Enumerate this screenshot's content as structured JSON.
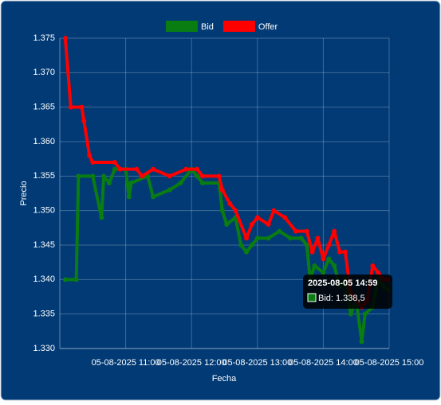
{
  "chart_data": {
    "type": "line",
    "x_label": "Fecha",
    "y_label": "Precio",
    "xlim": [
      "2025-08-05 10:00",
      "2025-08-05 15:00"
    ],
    "xticks": [
      {
        "value": "2025-08-05 11:00",
        "label": "05-08-2025 11:00"
      },
      {
        "value": "2025-08-05 12:00",
        "label": "05-08-2025 12:00"
      },
      {
        "value": "2025-08-05 13:00",
        "label": "05-08-2025 13:00"
      },
      {
        "value": "2025-08-05 14:00",
        "label": "05-08-2025 14:00"
      },
      {
        "value": "2025-08-05 15:00",
        "label": "05-08-2025 15:00"
      }
    ],
    "ylim": [
      1.33,
      1.375
    ],
    "yticks": [
      {
        "value": 1.33,
        "label": "1.330"
      },
      1.335,
      {
        "value": 1.34,
        "label": "1.340"
      },
      1.345,
      {
        "value": 1.35,
        "label": "1.350"
      },
      1.355,
      {
        "value": 1.36,
        "label": "1.360"
      },
      1.365,
      {
        "value": 1.37,
        "label": "1.370"
      },
      1.375
    ],
    "grid": true,
    "legend": "top",
    "series": [
      {
        "name": "Bid",
        "color": "#0a7d12",
        "x": [
          "2025-08-05 10:05",
          "2025-08-05 10:15",
          "2025-08-05 10:17",
          "2025-08-05 10:30",
          "2025-08-05 10:38",
          "2025-08-05 10:40",
          "2025-08-05 10:45",
          "2025-08-05 10:50",
          "2025-08-05 11:00",
          "2025-08-05 11:03",
          "2025-08-05 11:05",
          "2025-08-05 11:20",
          "2025-08-05 11:25",
          "2025-08-05 11:40",
          "2025-08-05 11:50",
          "2025-08-05 12:00",
          "2025-08-05 12:05",
          "2025-08-05 12:10",
          "2025-08-05 12:25",
          "2025-08-05 12:28",
          "2025-08-05 12:32",
          "2025-08-05 12:40",
          "2025-08-05 12:45",
          "2025-08-05 12:50",
          "2025-08-05 12:55",
          "2025-08-05 13:00",
          "2025-08-05 13:10",
          "2025-08-05 13:20",
          "2025-08-05 13:30",
          "2025-08-05 13:40",
          "2025-08-05 13:45",
          "2025-08-05 13:48",
          "2025-08-05 13:52",
          "2025-08-05 14:00",
          "2025-08-05 14:05",
          "2025-08-05 14:10",
          "2025-08-05 14:15",
          "2025-08-05 14:20",
          "2025-08-05 14:25",
          "2025-08-05 14:30",
          "2025-08-05 14:35",
          "2025-08-05 14:38",
          "2025-08-05 14:45",
          "2025-08-05 14:50",
          "2025-08-05 14:55",
          "2025-08-05 14:59"
        ],
        "values": [
          1.34,
          1.34,
          1.355,
          1.355,
          1.349,
          1.355,
          1.354,
          1.356,
          1.356,
          1.352,
          1.354,
          1.355,
          1.352,
          1.353,
          1.354,
          1.356,
          1.355,
          1.354,
          1.354,
          1.35,
          1.348,
          1.349,
          1.345,
          1.344,
          1.345,
          1.346,
          1.346,
          1.347,
          1.346,
          1.346,
          1.345,
          1.34,
          1.342,
          1.341,
          1.343,
          1.342,
          1.339,
          1.34,
          1.335,
          1.337,
          1.331,
          1.335,
          1.336,
          1.34,
          1.339,
          1.3385
        ]
      },
      {
        "name": "Offer",
        "color": "#ff0000",
        "x": [
          "2025-08-05 10:05",
          "2025-08-05 10:10",
          "2025-08-05 10:20",
          "2025-08-05 10:22",
          "2025-08-05 10:27",
          "2025-08-05 10:30",
          "2025-08-05 10:50",
          "2025-08-05 10:55",
          "2025-08-05 11:10",
          "2025-08-05 11:15",
          "2025-08-05 11:25",
          "2025-08-05 11:40",
          "2025-08-05 11:55",
          "2025-08-05 12:05",
          "2025-08-05 12:10",
          "2025-08-05 12:25",
          "2025-08-05 12:28",
          "2025-08-05 12:35",
          "2025-08-05 12:40",
          "2025-08-05 12:50",
          "2025-08-05 12:55",
          "2025-08-05 13:00",
          "2025-08-05 13:10",
          "2025-08-05 13:15",
          "2025-08-05 13:25",
          "2025-08-05 13:35",
          "2025-08-05 13:45",
          "2025-08-05 13:50",
          "2025-08-05 13:55",
          "2025-08-05 14:00",
          "2025-08-05 14:05",
          "2025-08-05 14:10",
          "2025-08-05 14:15",
          "2025-08-05 14:20",
          "2025-08-05 14:25",
          "2025-08-05 14:35",
          "2025-08-05 14:40",
          "2025-08-05 14:45",
          "2025-08-05 14:50",
          "2025-08-05 14:55",
          "2025-08-05 14:59"
        ],
        "values": [
          1.375,
          1.365,
          1.365,
          1.363,
          1.358,
          1.357,
          1.357,
          1.356,
          1.356,
          1.355,
          1.356,
          1.355,
          1.356,
          1.356,
          1.355,
          1.355,
          1.353,
          1.351,
          1.35,
          1.346,
          1.348,
          1.349,
          1.348,
          1.35,
          1.349,
          1.347,
          1.347,
          1.344,
          1.346,
          1.343,
          1.345,
          1.347,
          1.344,
          1.344,
          1.338,
          1.336,
          1.337,
          1.342,
          1.341,
          1.34,
          1.34
        ]
      }
    ],
    "tooltip": {
      "title": "2025-08-05 14:59",
      "label": "Bid: 1.338,5"
    }
  }
}
